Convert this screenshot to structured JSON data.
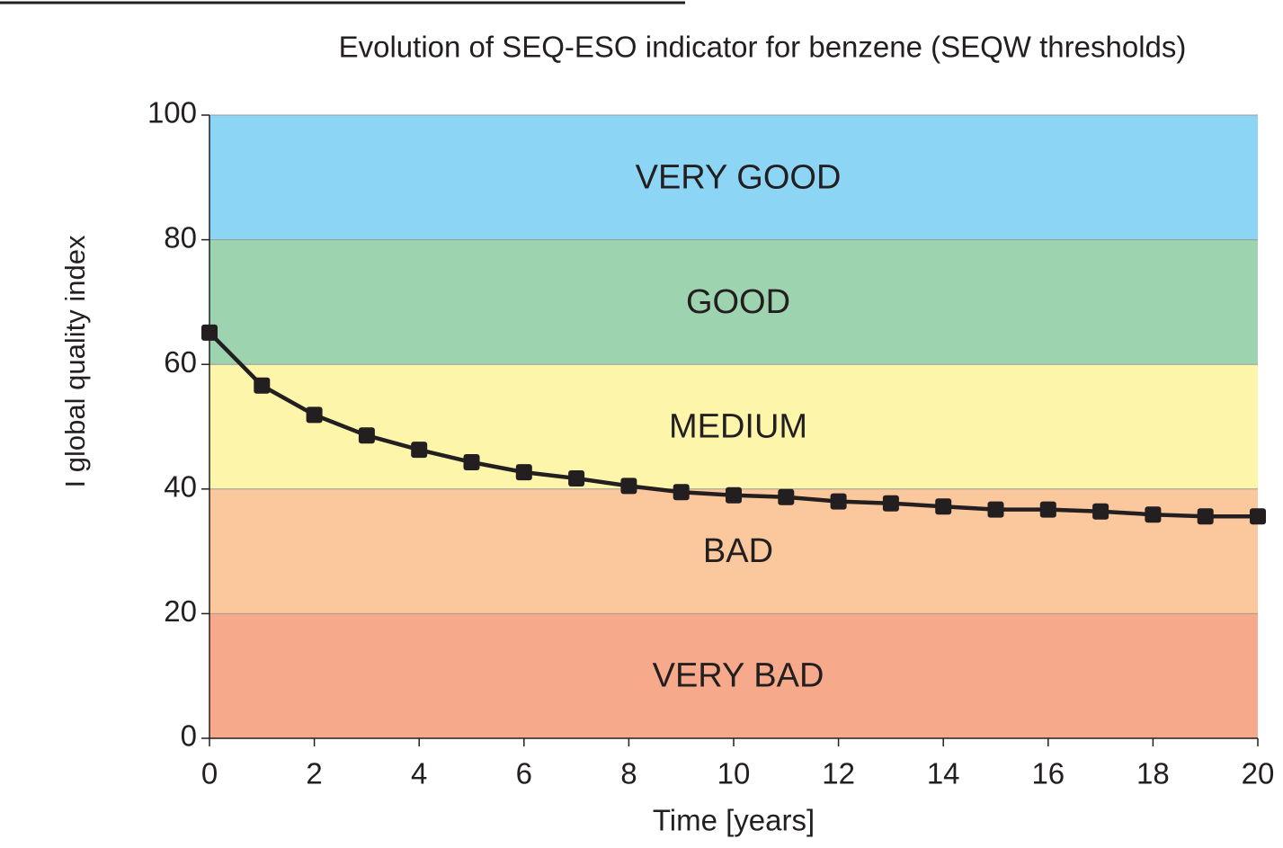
{
  "chart_data": {
    "type": "line",
    "title": "Evolution of SEQ-ESO indicator for benzene (SEQW thresholds)",
    "x_label": "Time [years]",
    "y_label": "I global quality index",
    "x": [
      0,
      1,
      2,
      3,
      4,
      5,
      6,
      7,
      8,
      9,
      10,
      11,
      12,
      13,
      14,
      15,
      16,
      17,
      18,
      19,
      20
    ],
    "values": [
      65.1,
      56.6,
      51.9,
      48.6,
      46.3,
      44.3,
      42.7,
      41.7,
      40.5,
      39.5,
      39.0,
      38.7,
      38.0,
      37.7,
      37.2,
      36.7,
      36.7,
      36.4,
      35.9,
      35.6,
      35.6
    ],
    "color": "#231f20",
    "xlim": [
      0,
      20
    ],
    "ylim": [
      0,
      100
    ],
    "xticks": [
      0,
      2,
      4,
      6,
      8,
      10,
      12,
      14,
      16,
      18,
      20
    ],
    "yticks": [
      0,
      20,
      40,
      60,
      80,
      100
    ],
    "grid": true,
    "bands": [
      {
        "label": "VERY GOOD",
        "from": 80,
        "to": 100,
        "color": "#8dd5f5"
      },
      {
        "label": "GOOD",
        "from": 60,
        "to": 80,
        "color": "#9dd3ae"
      },
      {
        "label": "MEDIUM",
        "from": 40,
        "to": 60,
        "color": "#fdf6aa"
      },
      {
        "label": "BAD",
        "from": 20,
        "to": 40,
        "color": "#fbc79c"
      },
      {
        "label": "VERY BAD",
        "from": 0,
        "to": 20,
        "color": "#f7a98b"
      }
    ]
  }
}
